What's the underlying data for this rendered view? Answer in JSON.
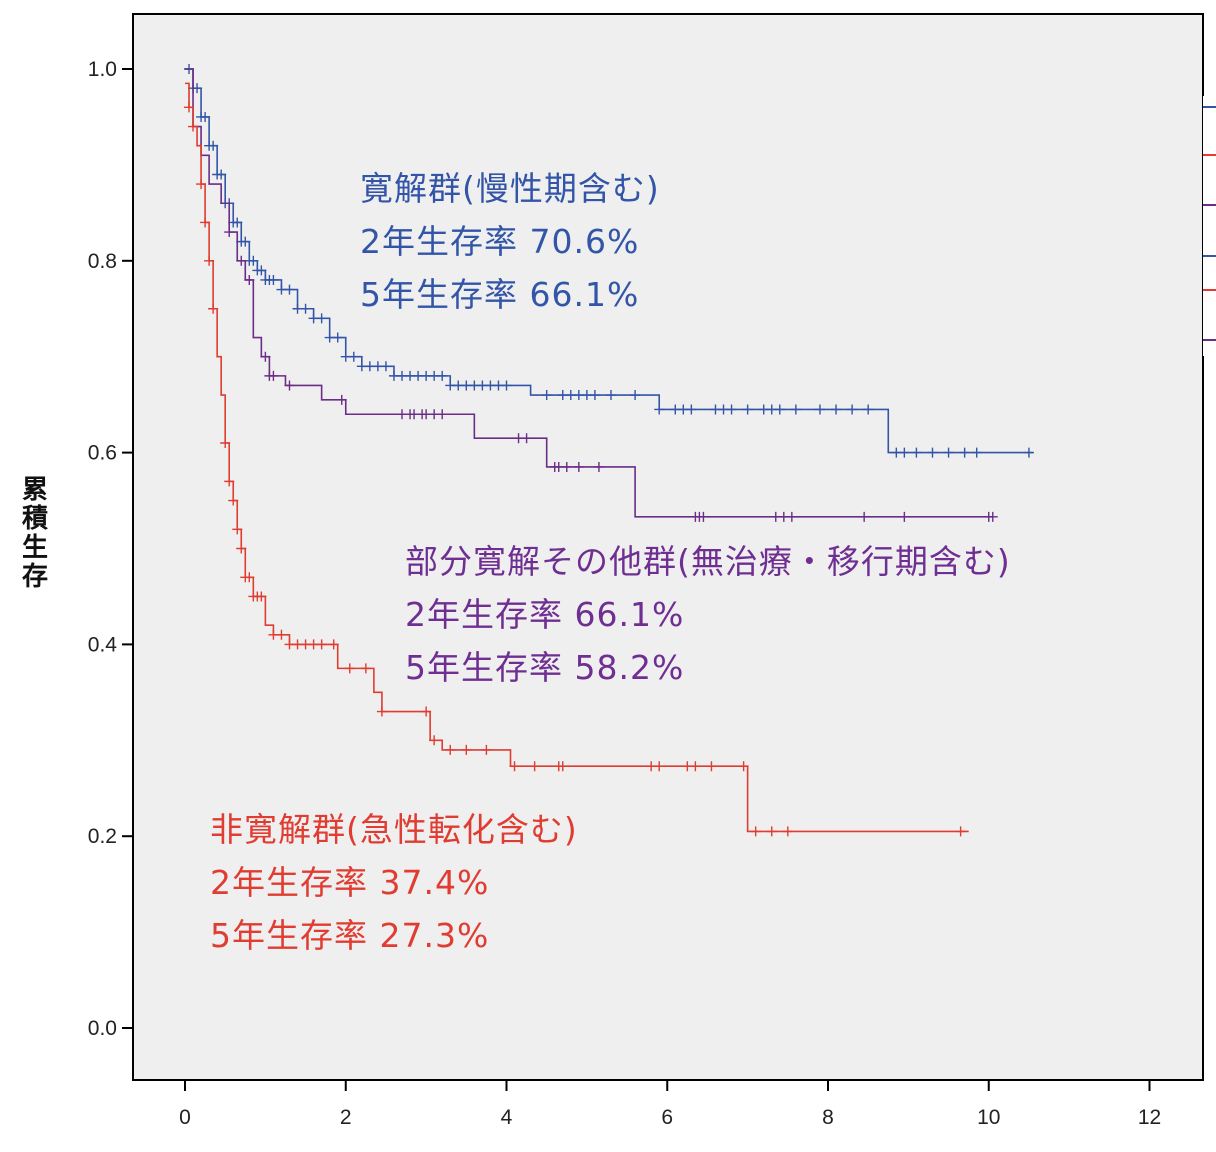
{
  "chart_data": {
    "type": "line",
    "ylabel": "累積生存",
    "xlabel": "",
    "xlim": [
      0,
      12
    ],
    "ylim": [
      0,
      1
    ],
    "x_ticks": [
      "0",
      "2",
      "4",
      "6",
      "8",
      "10",
      "12"
    ],
    "y_ticks": [
      "0.0",
      "0.2",
      "0.4",
      "0.6",
      "0.8",
      "1.0"
    ],
    "legend": "right, clipped",
    "series": [
      {
        "name": "寛解群(慢性期含む)",
        "color": "#3355a8",
        "points": [
          [
            0,
            1.0
          ],
          [
            0.1,
            0.98
          ],
          [
            0.2,
            0.95
          ],
          [
            0.3,
            0.92
          ],
          [
            0.4,
            0.89
          ],
          [
            0.5,
            0.86
          ],
          [
            0.6,
            0.84
          ],
          [
            0.7,
            0.82
          ],
          [
            0.8,
            0.8
          ],
          [
            0.9,
            0.79
          ],
          [
            1.0,
            0.78
          ],
          [
            1.2,
            0.77
          ],
          [
            1.4,
            0.75
          ],
          [
            1.6,
            0.74
          ],
          [
            1.8,
            0.72
          ],
          [
            2.0,
            0.7
          ],
          [
            2.2,
            0.69
          ],
          [
            2.4,
            0.69
          ],
          [
            2.6,
            0.68
          ],
          [
            2.8,
            0.68
          ],
          [
            3.3,
            0.67
          ],
          [
            4.3,
            0.66
          ],
          [
            5.9,
            0.645
          ],
          [
            8.75,
            0.6
          ],
          [
            10.55,
            0.6
          ]
        ],
        "censors": [
          0.05,
          0.1,
          0.15,
          0.2,
          0.25,
          0.3,
          0.35,
          0.4,
          0.45,
          0.5,
          0.55,
          0.6,
          0.65,
          0.7,
          0.75,
          0.8,
          0.85,
          0.9,
          0.95,
          1.0,
          1.05,
          1.1,
          1.2,
          1.3,
          1.4,
          1.5,
          1.6,
          1.7,
          1.8,
          1.9,
          2.0,
          2.1,
          2.2,
          2.3,
          2.4,
          2.5,
          2.6,
          2.7,
          2.8,
          2.9,
          3.0,
          3.1,
          3.2,
          3.3,
          3.4,
          3.5,
          3.6,
          3.7,
          3.8,
          3.9,
          4.0,
          4.5,
          4.7,
          4.8,
          4.9,
          5.0,
          5.1,
          5.3,
          5.6,
          5.9,
          6.1,
          6.2,
          6.3,
          6.6,
          6.7,
          6.8,
          7.0,
          7.2,
          7.3,
          7.4,
          7.6,
          7.9,
          8.1,
          8.3,
          8.5,
          8.85,
          8.95,
          9.1,
          9.3,
          9.5,
          9.7,
          9.85,
          10.5
        ],
        "annotation": [
          "寛解群(慢性期含む)",
          "2年生存率 70.6%",
          "5年生存率 66.1%"
        ]
      },
      {
        "name": "部分寛解その他群(無治療・移行期含む)",
        "color": "#6b2d86",
        "points": [
          [
            0,
            1.0
          ],
          [
            0.1,
            0.94
          ],
          [
            0.2,
            0.91
          ],
          [
            0.3,
            0.88
          ],
          [
            0.45,
            0.86
          ],
          [
            0.55,
            0.83
          ],
          [
            0.65,
            0.8
          ],
          [
            0.75,
            0.78
          ],
          [
            0.85,
            0.72
          ],
          [
            0.95,
            0.7
          ],
          [
            1.05,
            0.68
          ],
          [
            1.25,
            0.67
          ],
          [
            1.7,
            0.655
          ],
          [
            2.0,
            0.64
          ],
          [
            3.6,
            0.615
          ],
          [
            4.5,
            0.585
          ],
          [
            5.6,
            0.533
          ],
          [
            10.05,
            0.533
          ]
        ],
        "censors": [
          0.55,
          0.7,
          0.8,
          1.0,
          1.05,
          1.1,
          1.3,
          1.95,
          2.7,
          2.8,
          2.85,
          2.95,
          3.0,
          3.1,
          3.2,
          4.15,
          4.25,
          4.6,
          4.65,
          4.75,
          4.9,
          5.15,
          6.35,
          6.4,
          6.45,
          7.35,
          7.45,
          7.55,
          8.45,
          8.95,
          10.0,
          10.05
        ],
        "annotation": [
          "部分寛解その他群(無治療・移行期含む)",
          "2年生存率 66.1%",
          "5年生存率 58.2%"
        ]
      },
      {
        "name": "非寛解群(急性転化含む)",
        "color": "#e03c31",
        "points": [
          [
            0,
            0.985
          ],
          [
            0.05,
            0.96
          ],
          [
            0.1,
            0.94
          ],
          [
            0.15,
            0.92
          ],
          [
            0.2,
            0.88
          ],
          [
            0.25,
            0.84
          ],
          [
            0.3,
            0.8
          ],
          [
            0.35,
            0.75
          ],
          [
            0.4,
            0.7
          ],
          [
            0.45,
            0.66
          ],
          [
            0.5,
            0.61
          ],
          [
            0.55,
            0.57
          ],
          [
            0.6,
            0.55
          ],
          [
            0.65,
            0.52
          ],
          [
            0.7,
            0.5
          ],
          [
            0.75,
            0.47
          ],
          [
            0.85,
            0.45
          ],
          [
            1.0,
            0.42
          ],
          [
            1.1,
            0.41
          ],
          [
            1.3,
            0.4
          ],
          [
            1.9,
            0.375
          ],
          [
            2.35,
            0.35
          ],
          [
            2.45,
            0.33
          ],
          [
            3.05,
            0.3
          ],
          [
            3.2,
            0.29
          ],
          [
            4.05,
            0.273
          ],
          [
            7.0,
            0.205
          ],
          [
            9.75,
            0.205
          ]
        ],
        "censors": [
          0.05,
          0.1,
          0.2,
          0.25,
          0.3,
          0.35,
          0.5,
          0.55,
          0.6,
          0.65,
          0.7,
          0.75,
          0.8,
          0.85,
          0.9,
          0.95,
          1.1,
          1.2,
          1.3,
          1.4,
          1.5,
          1.6,
          1.7,
          1.85,
          2.05,
          2.25,
          2.45,
          3.0,
          3.1,
          3.3,
          3.5,
          3.75,
          4.1,
          4.35,
          4.65,
          4.7,
          5.8,
          5.9,
          6.25,
          6.35,
          6.55,
          6.95,
          7.1,
          7.3,
          7.5,
          9.65
        ],
        "annotation": [
          "非寛解群(急性転化含む)",
          "2年生存率 37.4%",
          "5年生存率 27.3%"
        ]
      }
    ]
  }
}
